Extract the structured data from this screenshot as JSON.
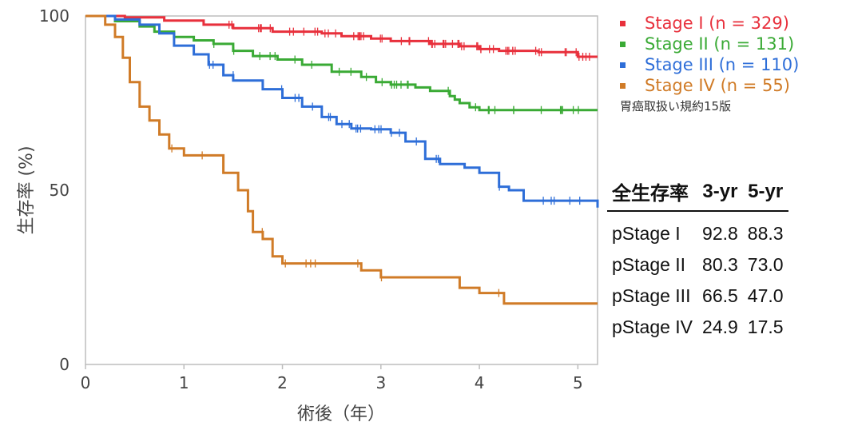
{
  "chart_data": {
    "type": "line",
    "xlabel": "術後（年）",
    "ylabel": "生存率 (%)",
    "xlim": [
      0,
      5.2
    ],
    "ylim": [
      0,
      100
    ],
    "x_ticks": [
      "0",
      "1",
      "2",
      "3",
      "4",
      "5"
    ],
    "y_ticks": [
      "0",
      "50",
      "100"
    ],
    "legend_placement": "top-right",
    "series": [
      {
        "name": "Stage I (n = 329)",
        "color": "#e8303c",
        "points": [
          [
            0,
            100
          ],
          [
            0.4,
            99.6
          ],
          [
            0.8,
            98.7
          ],
          [
            1.2,
            97.5
          ],
          [
            1.5,
            96.5
          ],
          [
            1.9,
            95.5
          ],
          [
            2.4,
            95
          ],
          [
            2.6,
            94.2
          ],
          [
            2.9,
            93.5
          ],
          [
            3.1,
            92.8
          ],
          [
            3.5,
            92
          ],
          [
            3.8,
            91.3
          ],
          [
            4,
            90.5
          ],
          [
            4.2,
            90
          ],
          [
            4.6,
            89.6
          ],
          [
            5,
            88.3
          ],
          [
            5.2,
            88.3
          ]
        ]
      },
      {
        "name": "Stage II (n = 131)",
        "color": "#3aaa35",
        "points": [
          [
            0,
            100
          ],
          [
            0.3,
            98.5
          ],
          [
            0.55,
            97
          ],
          [
            0.7,
            95.5
          ],
          [
            0.9,
            94
          ],
          [
            1.1,
            93
          ],
          [
            1.3,
            92
          ],
          [
            1.5,
            90
          ],
          [
            1.7,
            88.5
          ],
          [
            1.95,
            87.5
          ],
          [
            2.2,
            86
          ],
          [
            2.5,
            84
          ],
          [
            2.8,
            82.5
          ],
          [
            2.95,
            81
          ],
          [
            3.1,
            80.3
          ],
          [
            3.35,
            79.5
          ],
          [
            3.5,
            78.5
          ],
          [
            3.7,
            77
          ],
          [
            3.75,
            76
          ],
          [
            3.8,
            75
          ],
          [
            3.9,
            73.8
          ],
          [
            4,
            73
          ],
          [
            5.2,
            73
          ]
        ]
      },
      {
        "name": "Stage III (n = 110)",
        "color": "#2e6ed8",
        "points": [
          [
            0,
            100
          ],
          [
            0.3,
            99
          ],
          [
            0.55,
            97.5
          ],
          [
            0.75,
            95
          ],
          [
            0.9,
            91.5
          ],
          [
            1.1,
            89
          ],
          [
            1.25,
            86
          ],
          [
            1.4,
            83
          ],
          [
            1.5,
            81.5
          ],
          [
            1.7,
            81.5
          ],
          [
            1.8,
            79
          ],
          [
            2,
            76.5
          ],
          [
            2.2,
            74
          ],
          [
            2.4,
            71
          ],
          [
            2.55,
            69
          ],
          [
            2.7,
            67.7
          ],
          [
            2.9,
            67.5
          ],
          [
            3.1,
            66.5
          ],
          [
            3.25,
            64
          ],
          [
            3.45,
            59
          ],
          [
            3.6,
            57.5
          ],
          [
            3.85,
            56.5
          ],
          [
            4,
            55
          ],
          [
            4.2,
            51
          ],
          [
            4.3,
            50
          ],
          [
            4.45,
            47
          ],
          [
            4.7,
            47
          ],
          [
            5.2,
            47
          ],
          [
            5.2,
            45
          ]
        ]
      },
      {
        "name": "Stage IV (n = 55)",
        "color": "#d07b27",
        "points": [
          [
            0,
            100
          ],
          [
            0.2,
            97.5
          ],
          [
            0.3,
            94
          ],
          [
            0.38,
            88
          ],
          [
            0.45,
            81
          ],
          [
            0.55,
            74
          ],
          [
            0.65,
            70
          ],
          [
            0.75,
            66
          ],
          [
            0.85,
            62
          ],
          [
            1,
            60
          ],
          [
            1.3,
            60
          ],
          [
            1.4,
            55
          ],
          [
            1.55,
            50
          ],
          [
            1.65,
            44
          ],
          [
            1.7,
            38
          ],
          [
            1.8,
            36
          ],
          [
            1.9,
            31
          ],
          [
            2,
            29
          ],
          [
            2.7,
            29
          ],
          [
            2.8,
            27
          ],
          [
            3,
            25
          ],
          [
            3.75,
            25
          ],
          [
            3.8,
            22
          ],
          [
            4,
            20.5
          ],
          [
            4.25,
            17.5
          ],
          [
            5.2,
            17.5
          ]
        ]
      }
    ]
  },
  "legend_note": "胃癌取扱い規約15版",
  "table": {
    "header": {
      "label": "全生存率",
      "col1": "3-yr",
      "col2": "5-yr"
    },
    "rows": [
      {
        "stage": "pStage I",
        "y3": "92.8",
        "y5": "88.3"
      },
      {
        "stage": "pStage II",
        "y3": "80.3",
        "y5": "73.0"
      },
      {
        "stage": "pStage III",
        "y3": "66.5",
        "y5": "47.0"
      },
      {
        "stage": "pStage IV",
        "y3": "24.9",
        "y5": "17.5"
      }
    ]
  }
}
